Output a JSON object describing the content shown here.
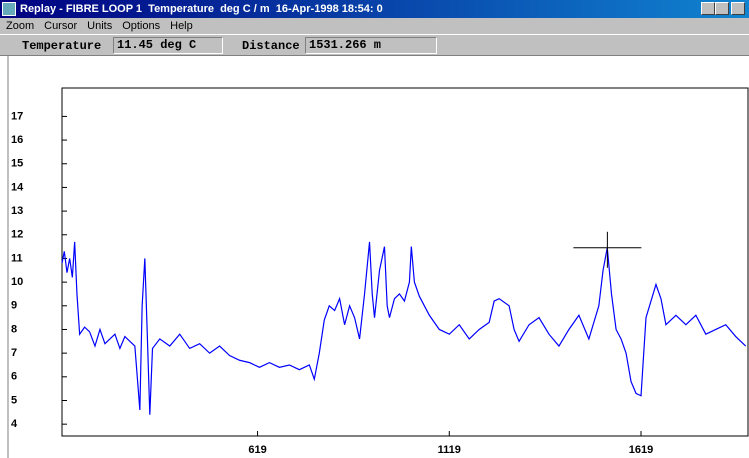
{
  "window": {
    "title": "Replay - FIBRE LOOP 1  Temperature  deg C / m  16-Apr-1998 18:54: 0",
    "menu": [
      "Zoom",
      "Cursor",
      "Units",
      "Options",
      "Help"
    ],
    "fields": [
      {
        "label": "Temperature",
        "value": "11.45 deg C"
      },
      {
        "label": "Distance",
        "value": "1531.266 m"
      }
    ]
  },
  "chart_data": {
    "type": "line",
    "xlim": [
      109,
      1898
    ],
    "ylim": [
      3.5,
      18.2
    ],
    "xticks": [
      619,
      1119,
      1619
    ],
    "yticks": [
      4,
      5,
      6,
      7,
      8,
      9,
      10,
      11,
      12,
      13,
      14,
      15,
      16,
      17
    ],
    "cursor": {
      "x": 1531.266,
      "y": 11.45
    },
    "series": [
      {
        "color": "#0000ff",
        "x": [
          109,
          115,
          122,
          129,
          136,
          142,
          148,
          155,
          168,
          181,
          195,
          208,
          221,
          234,
          247,
          260,
          273,
          286,
          299,
          312,
          318,
          325,
          331,
          338,
          345,
          364,
          390,
          416,
          442,
          468,
          494,
          520,
          546,
          572,
          598,
          624,
          650,
          676,
          702,
          728,
          754,
          767,
          780,
          793,
          806,
          820,
          833,
          846,
          859,
          872,
          885,
          898,
          911,
          918,
          924,
          937,
          950,
          957,
          963,
          976,
          989,
          1002,
          1015,
          1020,
          1028,
          1041,
          1067,
          1093,
          1119,
          1145,
          1171,
          1197,
          1223,
          1236,
          1249,
          1275,
          1288,
          1301,
          1327,
          1353,
          1379,
          1405,
          1431,
          1457,
          1483,
          1509,
          1520,
          1531,
          1542,
          1554,
          1567,
          1580,
          1593,
          1606,
          1619,
          1632,
          1645,
          1658,
          1671,
          1684,
          1710,
          1736,
          1762,
          1788,
          1814,
          1840,
          1866,
          1892
        ],
        "values": [
          10.8,
          11.3,
          10.4,
          11.0,
          10.2,
          11.7,
          9.5,
          7.8,
          8.1,
          7.9,
          7.3,
          8.0,
          7.4,
          7.6,
          7.8,
          7.2,
          7.7,
          7.5,
          7.3,
          4.6,
          9.0,
          11.0,
          8.0,
          4.4,
          7.2,
          7.6,
          7.3,
          7.8,
          7.2,
          7.4,
          7.0,
          7.3,
          6.9,
          6.7,
          6.6,
          6.4,
          6.6,
          6.4,
          6.5,
          6.3,
          6.5,
          5.9,
          7.0,
          8.4,
          9.0,
          8.8,
          9.3,
          8.2,
          9.0,
          8.5,
          7.6,
          9.5,
          11.7,
          9.5,
          8.5,
          10.5,
          11.5,
          9.0,
          8.5,
          9.3,
          9.5,
          9.2,
          10.0,
          11.5,
          10.0,
          9.4,
          8.6,
          8.0,
          7.8,
          8.2,
          7.6,
          8.0,
          8.3,
          9.2,
          9.3,
          9.0,
          8.0,
          7.5,
          8.2,
          8.5,
          7.8,
          7.3,
          8.0,
          8.6,
          7.6,
          9.0,
          10.5,
          11.45,
          9.5,
          8.0,
          7.6,
          7.0,
          5.8,
          5.3,
          5.2,
          8.5,
          9.2,
          9.9,
          9.3,
          8.2,
          8.6,
          8.2,
          8.6,
          7.8,
          8.0,
          8.2,
          7.7,
          7.3
        ]
      }
    ]
  }
}
